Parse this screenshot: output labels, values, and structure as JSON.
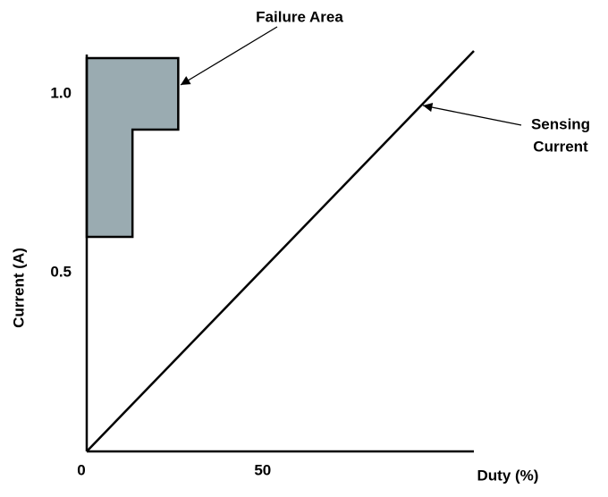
{
  "chart_data": {
    "type": "line",
    "xlabel": "Duty (%)",
    "ylabel": "Current (A)",
    "xlim": [
      0,
      110
    ],
    "ylim": [
      0,
      1.12
    ],
    "xticks": [
      0,
      50
    ],
    "yticks": [
      0.5,
      {
        "value": 1,
        "label": "1.0"
      }
    ],
    "grid": false,
    "series": [
      {
        "x": [
          0,
          110
        ],
        "values": [
          0,
          1.12
        ],
        "color": "#000000"
      }
    ],
    "region": {
      "x": [
        0,
        26,
        26,
        13,
        13,
        0
      ],
      "values": [
        1.1,
        1.1,
        0.9,
        0.9,
        0.6,
        0.6
      ],
      "color": "#9aabb1"
    },
    "annotations": [
      {
        "lines": [
          "Failure Area"
        ]
      },
      {
        "lines": [
          "Sensing",
          "Current"
        ]
      }
    ]
  }
}
